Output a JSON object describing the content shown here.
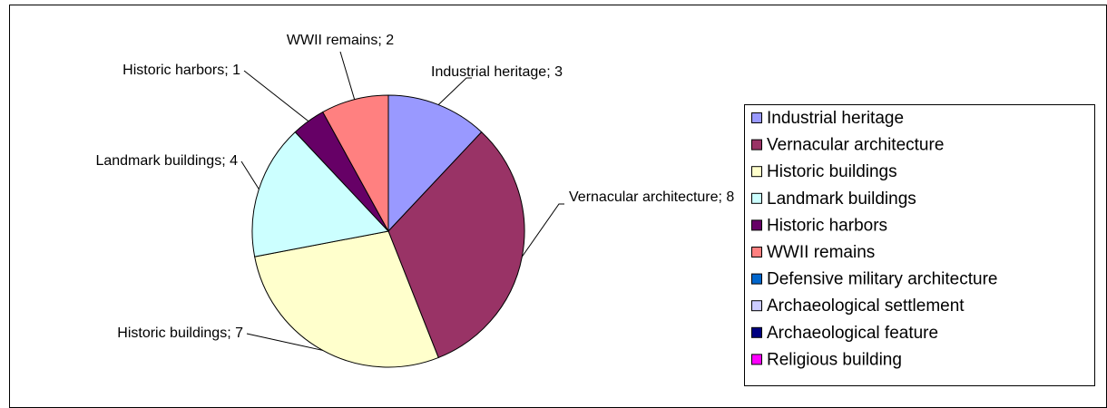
{
  "chart_data": {
    "type": "pie",
    "categories": [
      "Industrial heritage",
      "Vernacular architecture",
      "Historic buildings",
      "Landmark buildings",
      "Historic harbors",
      "WWII remains",
      "Defensive military architecture",
      "Archaeological settlement",
      "Archaeological feature",
      "Religious building"
    ],
    "values": [
      3,
      8,
      7,
      4,
      1,
      2,
      0,
      0,
      0,
      0
    ],
    "value_labels": [
      "Industrial heritage; 3",
      "Vernacular architecture; 8",
      "Historic buildings; 7",
      "Landmark buildings; 4",
      "Historic harbors; 1",
      "WWII remains; 2",
      null,
      null,
      null,
      null
    ],
    "colors": [
      "#9999FF",
      "#993366",
      "#FFFFCC",
      "#CCFFFF",
      "#660066",
      "#FF8080",
      "#0066CC",
      "#CCCCFF",
      "#000080",
      "#FF00FF"
    ],
    "legend": "right"
  }
}
